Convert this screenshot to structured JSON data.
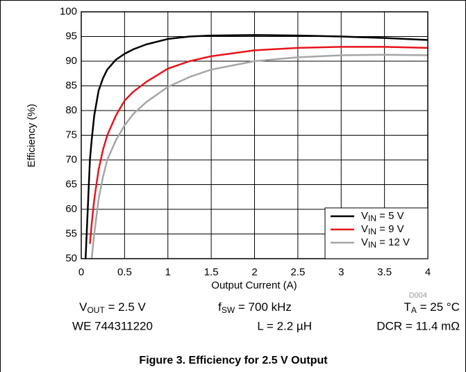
{
  "chart_data": {
    "type": "line",
    "xlabel": "Output Current (A)",
    "ylabel": "Efficiency (%)",
    "code": "D004",
    "caption": "Figure 3. Efficiency for 2.5 V Output",
    "notes": [
      "VOUT = 2.5 V",
      "fSW = 700 kHz",
      "TA = 25 °C",
      "WE 744311220",
      "L = 2.2 µH",
      "DCR = 11.4 mΩ"
    ],
    "x": [
      0.05,
      0.08,
      0.1,
      0.12,
      0.15,
      0.2,
      0.25,
      0.3,
      0.4,
      0.5,
      0.6,
      0.75,
      1,
      1.25,
      1.5,
      2,
      2.5,
      3,
      3.5,
      4
    ],
    "series": [
      {
        "name": "VIN = 5 V",
        "color": "#000000",
        "values": [
          50,
          62,
          70,
          74,
          79,
          84,
          86.5,
          88.3,
          90.3,
          91.5,
          92.4,
          93.4,
          94.5,
          95,
          95.2,
          95.3,
          95.2,
          95,
          94.7,
          94.3
        ]
      },
      {
        "name": "VIN = 9 V",
        "color": "#e8141b",
        "values": [
          null,
          null,
          53,
          57,
          62,
          68,
          72,
          75,
          79,
          82,
          83.8,
          85.8,
          88.5,
          90,
          91,
          92.2,
          92.7,
          92.9,
          92.9,
          92.7
        ]
      },
      {
        "name": "VIN = 12 V",
        "color": "#a6a6a6",
        "values": [
          null,
          null,
          null,
          50,
          55,
          62,
          66.5,
          70,
          74,
          77,
          79.3,
          81.7,
          84.8,
          86.8,
          88.3,
          90,
          90.8,
          91.2,
          91.3,
          91.2
        ]
      }
    ],
    "xlim": [
      0,
      4
    ],
    "xticks": [
      0,
      0.5,
      1,
      1.5,
      2,
      2.5,
      3,
      3.5,
      4
    ],
    "ylim": [
      50,
      100
    ],
    "yticks": [
      50,
      55,
      60,
      65,
      70,
      75,
      80,
      85,
      90,
      95,
      100
    ],
    "grid": true,
    "legend": "lower right"
  }
}
